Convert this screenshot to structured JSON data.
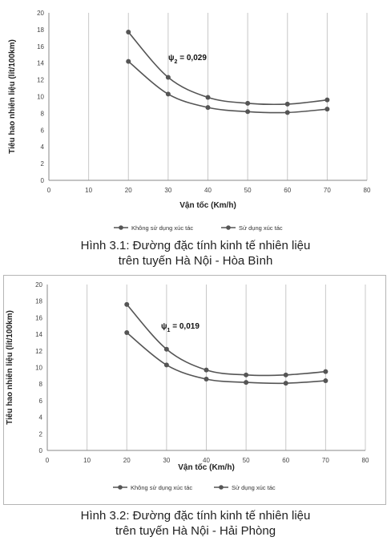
{
  "colors": {
    "series": "#555555",
    "grid": "#c8c8c8",
    "axis": "#888888"
  },
  "figures": [
    {
      "annotation": {
        "symbol": "ψ",
        "sub": "2",
        "text": " = 0,029"
      },
      "caption_line1": "Hình 3.1: Đường đặc tính kinh tế nhiên liệu",
      "caption_line2": "trên tuyến Hà Nội - Hòa Bình"
    },
    {
      "annotation": {
        "symbol": "ψ",
        "sub": "1",
        "text": " = 0,019"
      },
      "caption_line1": "Hình 3.2: Đường đặc tính kinh tế nhiên liệu",
      "caption_line2": "trên tuyến Hà Nội - Hải Phòng"
    }
  ],
  "chart_data": [
    {
      "type": "line",
      "xlabel": "Vận tốc (Km/h)",
      "ylabel": "Tiêu hao nhiên liệu (lít/100km)",
      "xlim": [
        0,
        80
      ],
      "ylim": [
        0,
        20
      ],
      "xticks": [
        "0",
        "10",
        "20",
        "30",
        "40",
        "50",
        "60",
        "70",
        "80"
      ],
      "yticks": [
        "0",
        "2",
        "4",
        "6",
        "8",
        "10",
        "12",
        "14",
        "16",
        "18",
        "20"
      ],
      "grid": "vertical",
      "legend_position": "bottom",
      "series": [
        {
          "name": "Không  sử dụng xúc tác",
          "x": [
            20,
            30,
            40,
            50,
            60,
            70
          ],
          "y": [
            17.7,
            12.3,
            9.9,
            9.2,
            9.1,
            9.6
          ]
        },
        {
          "name": "Sử dụng xúc tác",
          "x": [
            20,
            30,
            40,
            50,
            60,
            70
          ],
          "y": [
            14.2,
            10.3,
            8.7,
            8.2,
            8.1,
            8.5
          ]
        }
      ]
    },
    {
      "type": "line",
      "xlabel": "Vận tốc (Km/h)",
      "ylabel": "Tiêu hao nhiên liệu (lít/100km)",
      "xlim": [
        0,
        80
      ],
      "ylim": [
        0,
        20
      ],
      "xticks": [
        "0",
        "10",
        "20",
        "30",
        "40",
        "50",
        "60",
        "70",
        "80"
      ],
      "yticks": [
        "0",
        "2",
        "4",
        "6",
        "8",
        "10",
        "12",
        "14",
        "16",
        "18",
        "20"
      ],
      "grid": "vertical",
      "legend_position": "bottom",
      "series": [
        {
          "name": "Không sử dụng xúc tác",
          "x": [
            20,
            30,
            40,
            50,
            60,
            70
          ],
          "y": [
            17.6,
            12.2,
            9.7,
            9.1,
            9.1,
            9.5
          ]
        },
        {
          "name": "Sử dụng xúc tác",
          "x": [
            20,
            30,
            40,
            50,
            60,
            70
          ],
          "y": [
            14.2,
            10.3,
            8.6,
            8.2,
            8.1,
            8.4
          ]
        }
      ]
    }
  ]
}
